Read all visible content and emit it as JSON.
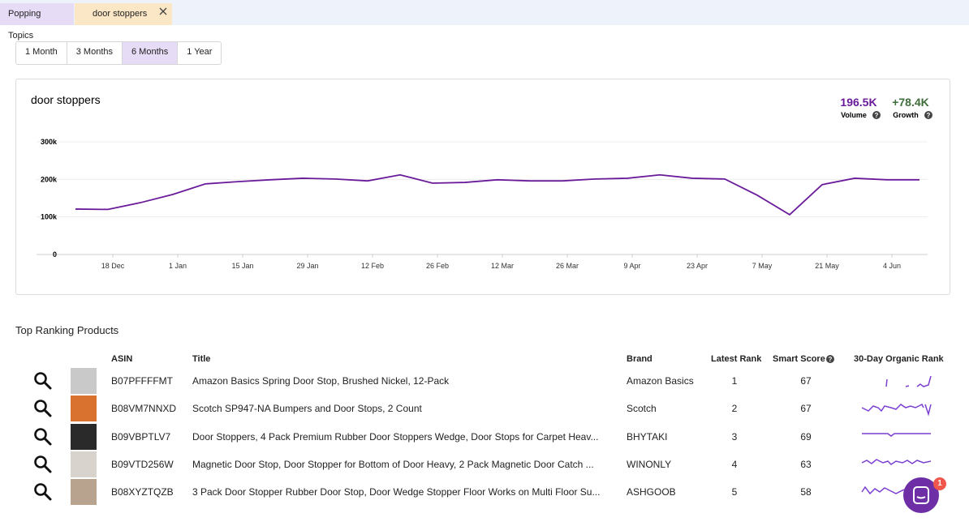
{
  "tabs": [
    "Popping Topics",
    "door stoppers"
  ],
  "range_buttons": [
    "1 Month",
    "3 Months",
    "6 Months",
    "1 Year"
  ],
  "active_range": 2,
  "chart_data": {
    "type": "line",
    "title": "door stoppers",
    "stats": [
      {
        "value": "196.5K",
        "label": "Volume",
        "color": "#6a1b9a"
      },
      {
        "value": "+78.4K",
        "label": "Growth",
        "color": "#3f6e3a"
      }
    ],
    "x": [
      0,
      1,
      2,
      3,
      4,
      5,
      6,
      7,
      8,
      9,
      10,
      11,
      12,
      13,
      14,
      15,
      16,
      17,
      18,
      19,
      20,
      21,
      22,
      23,
      24,
      25,
      26
    ],
    "series": [
      {
        "color": "#6a1b9a",
        "values": [
          121000,
          120000,
          138000,
          160000,
          188000,
          194000,
          199000,
          203000,
          201000,
          196000,
          212000,
          190000,
          192000,
          199000,
          196000,
          196000,
          201000,
          203000,
          212000,
          203000,
          201000,
          158000,
          106000,
          186000,
          203000,
          199000,
          199000
        ]
      }
    ],
    "xlim": [
      -1.2,
      26.25
    ],
    "xticks": [
      {
        "value": 1.15,
        "label": "18 Dec"
      },
      {
        "value": 3.15,
        "label": "1 Jan"
      },
      {
        "value": 5.15,
        "label": "15 Jan"
      },
      {
        "value": 7.15,
        "label": "29 Jan"
      },
      {
        "value": 9.15,
        "label": "12 Feb"
      },
      {
        "value": 11.15,
        "label": "26 Feb"
      },
      {
        "value": 13.15,
        "label": "12 Mar"
      },
      {
        "value": 15.15,
        "label": "26 Mar"
      },
      {
        "value": 17.15,
        "label": "9 Apr"
      },
      {
        "value": 19.15,
        "label": "23 Apr"
      },
      {
        "value": 21.15,
        "label": "7 May"
      },
      {
        "value": 23.15,
        "label": "21 May"
      },
      {
        "value": 25.15,
        "label": "4 Jun"
      }
    ],
    "ylim": [
      0,
      300000
    ],
    "yticks": [
      0,
      {
        "value": 100000,
        "label": "100k"
      },
      {
        "value": 200000,
        "label": "200k"
      },
      {
        "value": 300000,
        "label": "300k"
      }
    ],
    "grid": true
  },
  "section_title": "Top Ranking Products",
  "table": {
    "headers": [
      "ASIN",
      "Title",
      "Brand",
      "Latest Rank",
      "Smart Score",
      "30-Day Organic Rank"
    ],
    "rows": [
      [
        "B07PFFFFMT",
        "Amazon Basics Spring Door Stop, Brushed Nickel, 12-Pack",
        "Amazon Basics",
        "1",
        "67"
      ],
      [
        "B08VM7NNXD",
        "Scotch SP947-NA Bumpers and Door Stops, 2 Count",
        "Scotch",
        "2",
        "67"
      ],
      [
        "B09VBPTLV7",
        "Door Stoppers, 4 Pack Premium Rubber Door Stoppers Wedge, Door Stops for Carpet Heav...",
        "BHYTAKI",
        "3",
        "69"
      ],
      [
        "B09VTD256W",
        "Magnetic Door Stop, Door Stopper for Bottom of Door Heavy, 2 Pack Magnetic Door Catch ...",
        "WINONLY",
        "4",
        "63"
      ],
      [
        "B08XYZTQZB",
        "3 Pack Door Stopper Rubber Door Stop, Door Wedge Stopper Floor Works on Multi Floor Su...",
        "ASHGOOB",
        "5",
        "58"
      ]
    ]
  },
  "chat_badge": "1"
}
